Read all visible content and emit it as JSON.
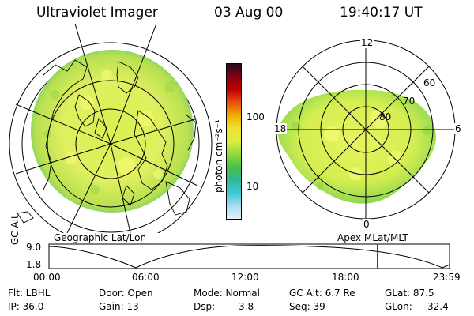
{
  "header": {
    "title": "Ultraviolet Imager",
    "date": "03 Aug 00",
    "time": "19:40:17 UT"
  },
  "colorbar": {
    "unit_label": "photon cm⁻²s⁻¹",
    "tick_100": "100",
    "tick_10": "10",
    "colors": [
      "#e8f0f8",
      "#a8dcec",
      "#40c8d8",
      "#30b898",
      "#48c048",
      "#90d840",
      "#d8f040",
      "#f0e030",
      "#f0b000",
      "#e85010",
      "#c00000",
      "#880010",
      "#201020"
    ]
  },
  "geographic_map": {
    "label": "Geographic Lat/Lon"
  },
  "polar_map": {
    "label": "Apex MLat/MLT",
    "mlt_labels": {
      "top": "12",
      "left": "18",
      "right": "6",
      "bottom": "0"
    },
    "lat_labels": {
      "l60": "60",
      "l70": "70",
      "l80": "80"
    }
  },
  "altitude_plot": {
    "ylabel": "GC Alt",
    "ytick_top": "9.0",
    "ytick_bottom": "1.8",
    "xticks": [
      "00:00",
      "06:00",
      "12:00",
      "18:00",
      "23:59"
    ],
    "current_time_marker": 19.67,
    "marker_color": "#cc0000"
  },
  "info": {
    "filter": "Flt: LBHL",
    "ip": "IP: 36.0",
    "door": "Door: Open",
    "gain": "Gain: 13",
    "mode": "Mode: Normal",
    "dsp_label": "Dsp:",
    "dsp_value": "3.8",
    "gc_alt": "GC Alt: 6.7 Re",
    "seq": "Seq: 39",
    "glat": "GLat: 87.5",
    "glon_label": "GLon:",
    "glon_value": "32.4"
  }
}
